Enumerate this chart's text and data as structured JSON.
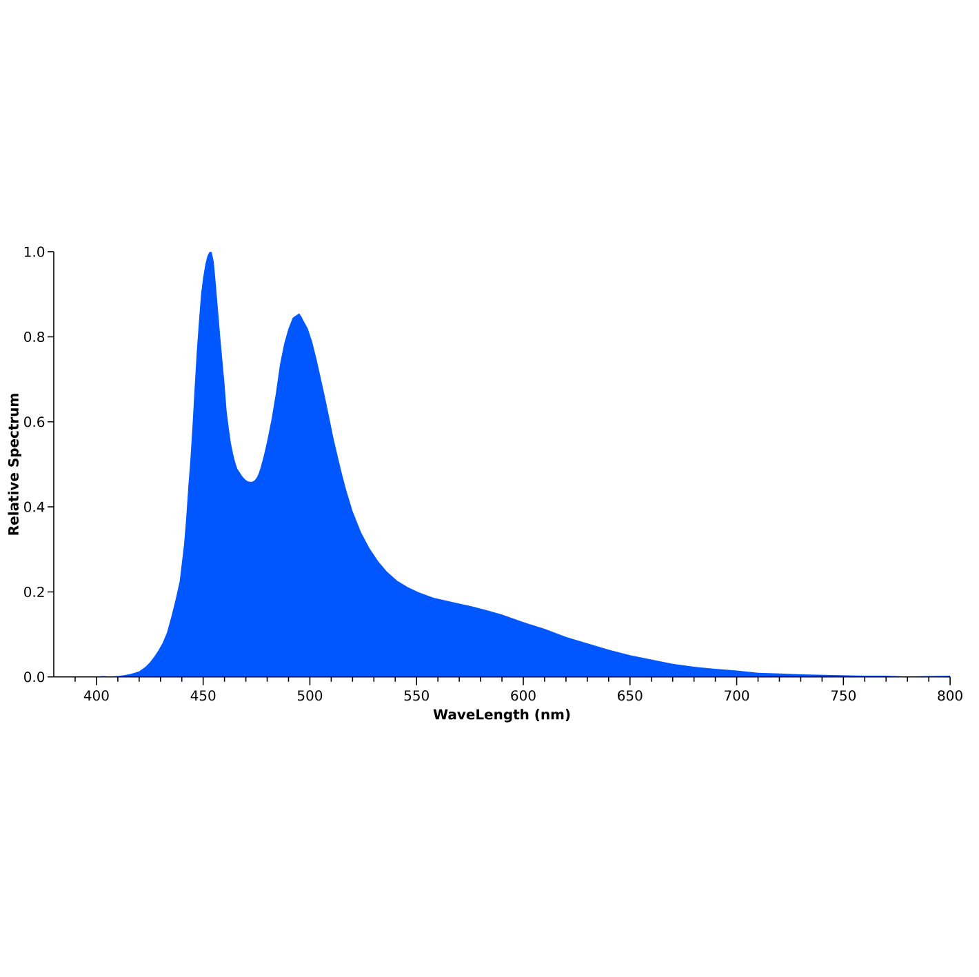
{
  "chart_data": {
    "type": "area",
    "xlabel": "WaveLength (nm)",
    "ylabel": "Relative Spectrum",
    "color": "#0057ff",
    "x": [
      385,
      390,
      395,
      400,
      403,
      406,
      410,
      413,
      416,
      420,
      423,
      425,
      427,
      429,
      431,
      433,
      435,
      437,
      439,
      441,
      442,
      443,
      444,
      445,
      446,
      447,
      448,
      449,
      450,
      451,
      452,
      453,
      454,
      455,
      456,
      457,
      458,
      459,
      460,
      461,
      462,
      463,
      464,
      465,
      466,
      467,
      468,
      469,
      470,
      471,
      472,
      473,
      474,
      475,
      476,
      477,
      478,
      479,
      480,
      482,
      484,
      486,
      488,
      490,
      492,
      494,
      495,
      496,
      497,
      499,
      501,
      503,
      505,
      507,
      509,
      511,
      513,
      515,
      517,
      520,
      524,
      528,
      532,
      536,
      541,
      546,
      551,
      558,
      568,
      576,
      582,
      590,
      600,
      610,
      620,
      630,
      640,
      650,
      660,
      670,
      680,
      690,
      700,
      710,
      720,
      730,
      740,
      750,
      760,
      770,
      780,
      790,
      800
    ],
    "values": [
      0.001,
      0.001,
      0.001,
      0.001,
      0.002,
      0.001,
      0.002,
      0.004,
      0.007,
      0.013,
      0.024,
      0.034,
      0.047,
      0.062,
      0.08,
      0.104,
      0.14,
      0.18,
      0.225,
      0.31,
      0.37,
      0.445,
      0.51,
      0.59,
      0.68,
      0.765,
      0.835,
      0.9,
      0.94,
      0.97,
      0.99,
      1.0,
      1.0,
      0.975,
      0.92,
      0.86,
      0.8,
      0.745,
      0.69,
      0.625,
      0.585,
      0.55,
      0.525,
      0.505,
      0.49,
      0.482,
      0.474,
      0.468,
      0.463,
      0.46,
      0.459,
      0.459,
      0.462,
      0.468,
      0.478,
      0.494,
      0.512,
      0.533,
      0.555,
      0.605,
      0.665,
      0.735,
      0.785,
      0.82,
      0.845,
      0.852,
      0.855,
      0.848,
      0.838,
      0.82,
      0.79,
      0.75,
      0.705,
      0.66,
      0.612,
      0.563,
      0.52,
      0.478,
      0.44,
      0.39,
      0.34,
      0.302,
      0.272,
      0.248,
      0.226,
      0.211,
      0.199,
      0.186,
      0.175,
      0.166,
      0.158,
      0.147,
      0.129,
      0.113,
      0.094,
      0.079,
      0.064,
      0.051,
      0.041,
      0.031,
      0.024,
      0.019,
      0.015,
      0.01,
      0.008,
      0.006,
      0.005,
      0.004,
      0.003,
      0.003,
      0.001,
      0.002,
      0.003
    ],
    "xlim": [
      380,
      800
    ],
    "ylim": [
      0,
      1
    ],
    "xticks": [
      {
        "value": 390,
        "label": null
      },
      400,
      {
        "value": 410,
        "label": null
      },
      {
        "value": 420,
        "label": null
      },
      {
        "value": 430,
        "label": null
      },
      {
        "value": 440,
        "label": null
      },
      450,
      {
        "value": 460,
        "label": null
      },
      {
        "value": 470,
        "label": null
      },
      {
        "value": 480,
        "label": null
      },
      {
        "value": 490,
        "label": null
      },
      500,
      {
        "value": 510,
        "label": null
      },
      {
        "value": 520,
        "label": null
      },
      {
        "value": 530,
        "label": null
      },
      {
        "value": 540,
        "label": null
      },
      550,
      {
        "value": 560,
        "label": null
      },
      {
        "value": 570,
        "label": null
      },
      {
        "value": 580,
        "label": null
      },
      {
        "value": 590,
        "label": null
      },
      600,
      {
        "value": 610,
        "label": null
      },
      {
        "value": 620,
        "label": null
      },
      {
        "value": 630,
        "label": null
      },
      {
        "value": 640,
        "label": null
      },
      650,
      {
        "value": 660,
        "label": null
      },
      {
        "value": 670,
        "label": null
      },
      {
        "value": 680,
        "label": null
      },
      {
        "value": 690,
        "label": null
      },
      700,
      {
        "value": 710,
        "label": null
      },
      {
        "value": 720,
        "label": null
      },
      {
        "value": 730,
        "label": null
      },
      {
        "value": 740,
        "label": null
      },
      750,
      {
        "value": 760,
        "label": null
      },
      {
        "value": 770,
        "label": null
      },
      {
        "value": 780,
        "label": null
      },
      {
        "value": 790,
        "label": null
      },
      800
    ],
    "yticks": [
      {
        "value": 0,
        "label": "0.0"
      },
      0.2,
      0.4,
      0.6,
      0.8,
      {
        "value": 1,
        "label": "1.0"
      }
    ]
  }
}
